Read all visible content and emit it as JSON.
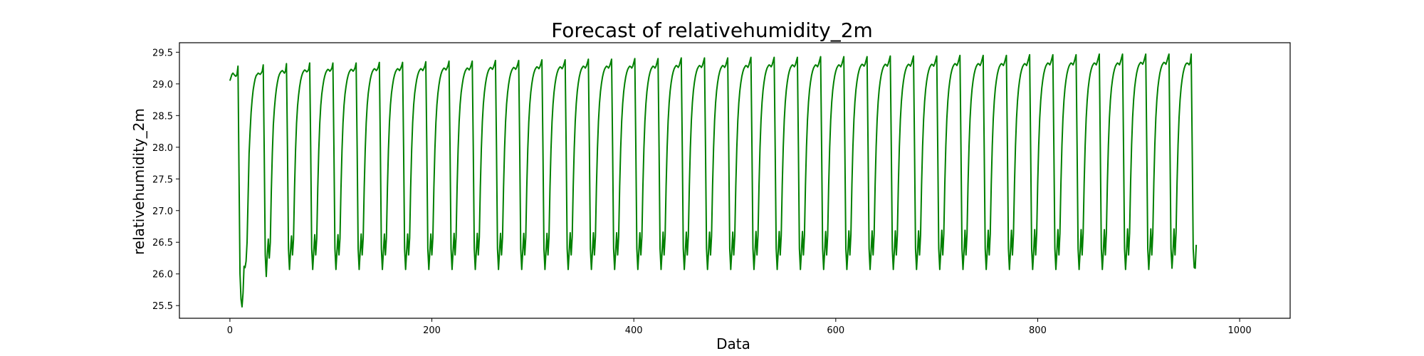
{
  "chart_data": {
    "type": "line",
    "title": "Forecast of relativehumidity_2m",
    "xlabel": "Data",
    "ylabel": "relativehumidity_2m",
    "xlim": [
      -50,
      1050
    ],
    "ylim": [
      25.3,
      29.65
    ],
    "x_ticks": [
      0,
      200,
      400,
      600,
      800,
      1000
    ],
    "x_tick_labels": [
      "0",
      "200",
      "400",
      "600",
      "800",
      "1000"
    ],
    "y_ticks": [
      25.5,
      26.0,
      26.5,
      27.0,
      27.5,
      28.0,
      28.5,
      29.0,
      29.5
    ],
    "y_tick_labels": [
      "25.5",
      "26.0",
      "26.5",
      "27.0",
      "27.5",
      "28.0",
      "28.5",
      "29.0",
      "29.5"
    ],
    "grid": false,
    "legend": "none",
    "colors": {
      "series": "#008000",
      "axes": "#000000",
      "background": "#ffffff"
    },
    "series": [
      {
        "x_start": 0,
        "x_step": 1,
        "values": [
          29.05,
          29.1,
          29.15,
          29.17,
          29.15,
          29.13,
          29.12,
          29.15,
          29.28,
          27.6,
          26.0,
          25.6,
          25.48,
          25.7,
          26.12,
          26.1,
          26.2,
          26.5,
          27.2,
          27.9,
          28.25,
          28.55,
          28.75,
          28.9,
          29.0,
          29.08,
          29.13,
          29.15,
          29.17,
          29.16,
          29.15,
          29.17,
          29.2,
          29.3,
          27.9,
          26.3,
          25.96,
          26.3,
          26.55,
          26.25,
          26.5,
          27.3,
          27.9,
          28.35,
          28.6,
          28.78,
          28.92,
          29.02,
          29.1,
          29.15,
          29.18,
          29.2,
          29.21,
          29.19,
          29.17,
          29.2,
          29.32,
          28.0,
          26.4,
          26.07,
          26.35,
          26.6,
          26.3,
          26.55,
          27.35,
          27.95,
          28.38,
          28.65,
          28.82,
          28.95,
          29.05,
          29.12,
          29.17,
          29.2,
          29.22,
          29.21,
          29.19,
          29.2,
          29.23,
          29.33,
          28.0,
          26.4,
          26.07,
          26.35,
          26.62,
          26.3,
          26.56,
          27.35,
          27.95,
          28.38,
          28.66,
          28.84,
          28.96,
          29.06,
          29.13,
          29.18,
          29.21,
          29.23,
          29.22,
          29.2,
          29.22,
          29.25,
          29.33,
          28.0,
          26.4,
          26.07,
          26.35,
          26.62,
          26.3,
          26.56,
          27.35,
          27.95,
          28.38,
          28.66,
          28.84,
          28.96,
          29.06,
          29.13,
          29.18,
          29.21,
          29.23,
          29.22,
          29.2,
          29.22,
          29.26,
          29.33,
          28.0,
          26.4,
          26.07,
          26.35,
          26.63,
          26.3,
          26.57,
          27.36,
          27.96,
          28.39,
          28.67,
          28.85,
          28.97,
          29.07,
          29.14,
          29.19,
          29.22,
          29.24,
          29.23,
          29.21,
          29.23,
          29.27,
          29.34,
          28.0,
          26.4,
          26.07,
          26.35,
          26.63,
          26.3,
          26.57,
          27.36,
          27.96,
          28.39,
          28.67,
          28.85,
          28.97,
          29.07,
          29.14,
          29.19,
          29.22,
          29.24,
          29.23,
          29.21,
          29.24,
          29.28,
          29.34,
          28.0,
          26.4,
          26.07,
          26.35,
          26.63,
          26.3,
          26.57,
          27.36,
          27.96,
          28.39,
          28.67,
          28.85,
          28.97,
          29.07,
          29.14,
          29.19,
          29.22,
          29.24,
          29.23,
          29.21,
          29.24,
          29.28,
          29.35,
          28.0,
          26.4,
          26.07,
          26.35,
          26.63,
          26.3,
          26.57,
          27.36,
          27.96,
          28.39,
          28.67,
          28.85,
          28.98,
          29.08,
          29.15,
          29.2,
          29.23,
          29.25,
          29.24,
          29.22,
          29.25,
          29.29,
          29.36,
          28.0,
          26.4,
          26.07,
          26.35,
          26.64,
          26.3,
          26.58,
          27.37,
          27.97,
          28.4,
          28.68,
          28.86,
          28.98,
          29.08,
          29.15,
          29.2,
          29.23,
          29.25,
          29.24,
          29.22,
          29.25,
          29.3,
          29.36,
          28.0,
          26.4,
          26.07,
          26.35,
          26.64,
          26.3,
          26.58,
          27.37,
          27.97,
          28.4,
          28.68,
          28.86,
          28.99,
          29.09,
          29.16,
          29.21,
          29.24,
          29.26,
          29.25,
          29.23,
          29.26,
          29.31,
          29.37,
          28.0,
          26.4,
          26.07,
          26.35,
          26.64,
          26.3,
          26.58,
          27.37,
          27.97,
          28.4,
          28.68,
          28.86,
          28.99,
          29.09,
          29.16,
          29.21,
          29.24,
          29.26,
          29.25,
          29.23,
          29.26,
          29.31,
          29.37,
          28.0,
          26.4,
          26.07,
          26.35,
          26.64,
          26.3,
          26.58,
          27.37,
          27.97,
          28.4,
          28.68,
          28.87,
          29.0,
          29.1,
          29.17,
          29.22,
          29.25,
          29.27,
          29.26,
          29.24,
          29.27,
          29.32,
          29.38,
          28.0,
          26.4,
          26.07,
          26.35,
          26.64,
          26.3,
          26.58,
          27.37,
          27.97,
          28.4,
          28.68,
          28.87,
          29.0,
          29.1,
          29.17,
          29.22,
          29.25,
          29.27,
          29.26,
          29.24,
          29.27,
          29.32,
          29.38,
          28.0,
          26.4,
          26.07,
          26.35,
          26.65,
          26.3,
          26.59,
          27.38,
          27.98,
          28.41,
          28.69,
          28.88,
          29.01,
          29.11,
          29.18,
          29.23,
          29.26,
          29.28,
          29.27,
          29.25,
          29.28,
          29.33,
          29.39,
          28.0,
          26.4,
          26.07,
          26.35,
          26.65,
          26.3,
          26.59,
          27.38,
          27.98,
          28.41,
          28.69,
          28.88,
          29.01,
          29.11,
          29.18,
          29.23,
          29.26,
          29.28,
          29.27,
          29.25,
          29.28,
          29.33,
          29.39,
          28.0,
          26.4,
          26.07,
          26.35,
          26.65,
          26.3,
          26.59,
          27.38,
          27.98,
          28.41,
          28.69,
          28.88,
          29.01,
          29.11,
          29.18,
          29.23,
          29.26,
          29.28,
          29.27,
          29.25,
          29.28,
          29.34,
          29.4,
          28.0,
          26.4,
          26.07,
          26.35,
          26.65,
          26.3,
          26.59,
          27.38,
          27.98,
          28.41,
          28.69,
          28.88,
          29.01,
          29.11,
          29.18,
          29.23,
          29.26,
          29.28,
          29.27,
          29.25,
          29.28,
          29.34,
          29.4,
          28.0,
          26.4,
          26.07,
          26.35,
          26.66,
          26.3,
          26.6,
          27.39,
          27.99,
          28.42,
          28.7,
          28.89,
          29.02,
          29.12,
          29.19,
          29.24,
          29.27,
          29.29,
          29.28,
          29.26,
          29.29,
          29.35,
          29.41,
          28.0,
          26.4,
          26.07,
          26.35,
          26.66,
          26.3,
          26.6,
          27.39,
          27.99,
          28.42,
          28.7,
          28.89,
          29.02,
          29.12,
          29.19,
          29.24,
          29.27,
          29.29,
          29.28,
          29.26,
          29.29,
          29.35,
          29.41,
          28.0,
          26.4,
          26.07,
          26.35,
          26.66,
          26.3,
          26.6,
          27.39,
          27.99,
          28.42,
          28.7,
          28.89,
          29.02,
          29.12,
          29.19,
          29.24,
          29.27,
          29.29,
          29.28,
          29.26,
          29.29,
          29.35,
          29.41,
          28.0,
          26.4,
          26.07,
          26.35,
          26.66,
          26.3,
          26.6,
          27.39,
          27.99,
          28.42,
          28.7,
          28.89,
          29.02,
          29.12,
          29.19,
          29.24,
          29.27,
          29.29,
          29.28,
          29.26,
          29.3,
          29.36,
          29.42,
          28.0,
          26.4,
          26.07,
          26.35,
          26.67,
          26.3,
          26.61,
          27.4,
          28.0,
          28.43,
          28.71,
          28.9,
          29.03,
          29.13,
          29.2,
          29.25,
          29.28,
          29.3,
          29.29,
          29.27,
          29.3,
          29.36,
          29.42,
          28.0,
          26.4,
          26.07,
          26.35,
          26.67,
          26.3,
          26.61,
          27.4,
          28.0,
          28.43,
          28.71,
          28.9,
          29.03,
          29.13,
          29.2,
          29.25,
          29.28,
          29.3,
          29.29,
          29.27,
          29.3,
          29.36,
          29.42,
          28.0,
          26.4,
          26.07,
          26.35,
          26.67,
          26.3,
          26.61,
          27.4,
          28.0,
          28.43,
          28.71,
          28.9,
          29.03,
          29.13,
          29.2,
          29.25,
          29.28,
          29.3,
          29.29,
          29.27,
          29.31,
          29.37,
          29.43,
          28.0,
          26.4,
          26.07,
          26.35,
          26.67,
          26.3,
          26.61,
          27.4,
          28.0,
          28.43,
          28.71,
          28.9,
          29.03,
          29.13,
          29.2,
          29.25,
          29.28,
          29.3,
          29.29,
          29.27,
          29.31,
          29.37,
          29.43,
          28.0,
          26.4,
          26.07,
          26.35,
          26.68,
          26.3,
          26.62,
          27.41,
          28.01,
          28.44,
          28.72,
          28.91,
          29.04,
          29.14,
          29.21,
          29.26,
          29.29,
          29.31,
          29.3,
          29.28,
          29.31,
          29.37,
          29.43,
          28.0,
          26.4,
          26.07,
          26.35,
          26.68,
          26.3,
          26.62,
          27.41,
          28.01,
          28.44,
          28.72,
          28.91,
          29.04,
          29.14,
          29.21,
          29.26,
          29.29,
          29.31,
          29.3,
          29.28,
          29.32,
          29.38,
          29.44,
          28.0,
          26.4,
          26.07,
          26.35,
          26.68,
          26.3,
          26.62,
          27.41,
          28.01,
          28.44,
          28.72,
          28.91,
          29.04,
          29.14,
          29.21,
          29.26,
          29.29,
          29.31,
          29.3,
          29.28,
          29.32,
          29.38,
          29.44,
          28.0,
          26.4,
          26.07,
          26.35,
          26.68,
          26.3,
          26.62,
          27.41,
          28.01,
          28.44,
          28.72,
          28.91,
          29.04,
          29.14,
          29.21,
          29.26,
          29.29,
          29.31,
          29.3,
          29.28,
          29.32,
          29.38,
          29.44,
          28.0,
          26.4,
          26.07,
          26.35,
          26.69,
          26.3,
          26.63,
          27.42,
          28.02,
          28.45,
          28.73,
          28.92,
          29.05,
          29.15,
          29.22,
          29.27,
          29.3,
          29.32,
          29.31,
          29.29,
          29.33,
          29.39,
          29.45,
          28.0,
          26.4,
          26.07,
          26.35,
          26.69,
          26.3,
          26.63,
          27.42,
          28.02,
          28.45,
          28.73,
          28.92,
          29.05,
          29.15,
          29.22,
          29.27,
          29.3,
          29.32,
          29.31,
          29.29,
          29.33,
          29.39,
          29.45,
          28.0,
          26.4,
          26.07,
          26.35,
          26.69,
          26.3,
          26.63,
          27.42,
          28.02,
          28.45,
          28.73,
          28.92,
          29.05,
          29.15,
          29.22,
          29.27,
          29.3,
          29.32,
          29.31,
          29.29,
          29.33,
          29.39,
          29.45,
          28.0,
          26.4,
          26.07,
          26.35,
          26.69,
          26.3,
          26.63,
          27.42,
          28.02,
          28.45,
          28.73,
          28.92,
          29.05,
          29.15,
          29.22,
          29.27,
          29.3,
          29.32,
          29.31,
          29.29,
          29.34,
          29.4,
          29.46,
          28.0,
          26.4,
          26.07,
          26.35,
          26.7,
          26.3,
          26.64,
          27.43,
          28.03,
          28.46,
          28.74,
          28.93,
          29.06,
          29.16,
          29.23,
          29.28,
          29.31,
          29.33,
          29.32,
          29.3,
          29.34,
          29.4,
          29.46,
          28.0,
          26.4,
          26.07,
          26.35,
          26.7,
          26.3,
          26.64,
          27.43,
          28.03,
          28.46,
          28.74,
          28.93,
          29.06,
          29.16,
          29.23,
          29.28,
          29.31,
          29.33,
          29.32,
          29.3,
          29.34,
          29.4,
          29.46,
          28.0,
          26.4,
          26.07,
          26.35,
          26.7,
          26.3,
          26.64,
          27.43,
          28.03,
          28.46,
          28.74,
          28.93,
          29.06,
          29.16,
          29.23,
          29.28,
          29.31,
          29.33,
          29.32,
          29.3,
          29.35,
          29.41,
          29.47,
          28.0,
          26.4,
          26.07,
          26.35,
          26.7,
          26.3,
          26.64,
          27.43,
          28.03,
          28.46,
          28.74,
          28.93,
          29.06,
          29.16,
          29.23,
          29.28,
          29.31,
          29.33,
          29.32,
          29.3,
          29.35,
          29.41,
          29.47,
          28.0,
          26.4,
          26.07,
          26.35,
          26.71,
          26.3,
          26.65,
          27.44,
          28.04,
          28.47,
          28.75,
          28.94,
          29.07,
          29.17,
          29.24,
          29.29,
          29.32,
          29.34,
          29.33,
          29.31,
          29.35,
          29.41,
          29.47,
          28.0,
          26.4,
          26.07,
          26.35,
          26.71,
          26.3,
          26.65,
          27.44,
          28.04,
          28.47,
          28.75,
          28.94,
          29.07,
          29.17,
          29.24,
          29.29,
          29.32,
          29.34,
          29.33,
          29.31,
          29.36,
          29.42,
          29.47,
          28.0,
          26.4,
          26.09,
          26.35,
          26.71,
          26.3,
          26.65,
          27.44,
          28.04,
          28.47,
          28.75,
          28.94,
          29.07,
          29.17,
          29.24,
          29.29,
          29.32,
          29.33,
          29.32,
          29.3,
          29.34,
          29.47,
          28.0,
          26.4,
          26.1,
          26.09,
          26.46
        ]
      }
    ]
  }
}
